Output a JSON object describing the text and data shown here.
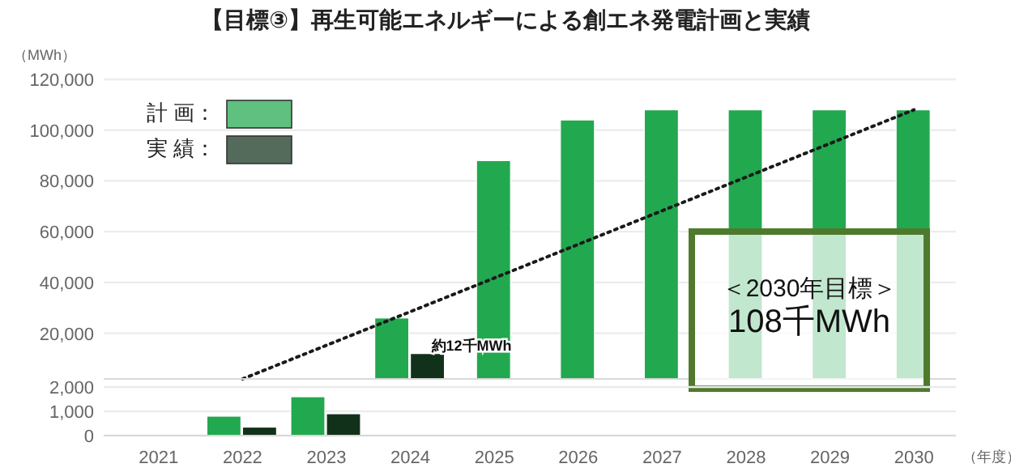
{
  "chart_data": [
    {
      "type": "bar",
      "title": "【目標③】再生可能エネルギーによる創エネ発電計画と実績",
      "ylabel": "（MWh）",
      "categories": [
        "2021",
        "2022",
        "2023",
        "2024",
        "2025",
        "2026",
        "2027",
        "2028",
        "2029",
        "2030"
      ],
      "series": [
        {
          "name": "計 画：",
          "color": "#22a84f",
          "values": [
            null,
            null,
            null,
            26000,
            88000,
            104000,
            108000,
            108000,
            108000,
            108000
          ]
        },
        {
          "name": "実 績：",
          "color": "#12311a",
          "values": [
            null,
            null,
            null,
            12000,
            null,
            null,
            null,
            null,
            null,
            null
          ]
        },
        {
          "type": "line",
          "color": "#1a1a1a",
          "line_style": "dotted",
          "values": [
            null,
            2000,
            null,
            null,
            null,
            null,
            null,
            null,
            null,
            108000
          ]
        }
      ],
      "ylim": [
        2000,
        120000
      ],
      "yticks": [
        {
          "value": 20000,
          "label": "20,000"
        },
        {
          "value": 40000,
          "label": "40,000"
        },
        {
          "value": 60000,
          "label": "60,000"
        },
        {
          "value": 80000,
          "label": "80,000"
        },
        {
          "value": 100000,
          "label": "100,000"
        },
        {
          "value": 120000,
          "label": "120,000"
        }
      ],
      "grid": "y",
      "legend": "top left",
      "tick_labels": "y",
      "annotations": [
        {
          "text": "約12千MWh",
          "x": "2024",
          "y": 12000
        },
        "＜2030年目標＞",
        "108千MWh"
      ]
    },
    {
      "type": "bar",
      "xlabel": "（年度）",
      "categories": [
        "2021",
        "2022",
        "2023",
        "2024",
        "2025",
        "2026",
        "2027",
        "2028",
        "2029",
        "2030"
      ],
      "series": [
        {
          "color": "#22a84f",
          "values": [
            null,
            800,
            1600,
            null,
            null,
            null,
            null,
            null,
            null,
            null
          ]
        },
        {
          "color": "#12311a",
          "values": [
            null,
            350,
            900,
            null,
            null,
            null,
            null,
            null,
            null,
            null
          ]
        }
      ],
      "ylim": [
        0,
        2000
      ],
      "yticks": [
        {
          "value": 0,
          "label": "0"
        },
        {
          "value": 1000,
          "label": "1,000"
        },
        {
          "value": 2000,
          "label": "2,000"
        }
      ],
      "grid": "y"
    }
  ]
}
